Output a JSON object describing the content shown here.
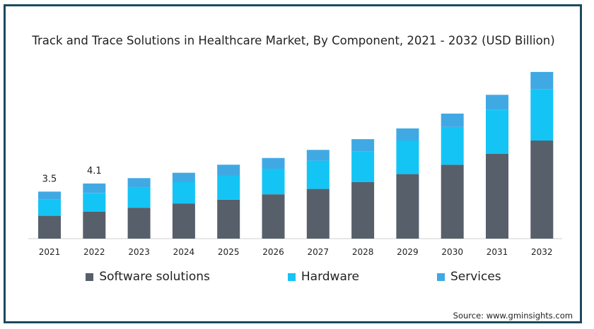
{
  "chart_data": {
    "type": "bar",
    "stacked": true,
    "title": "Track and Trace Solutions in Healthcare Market, By Component, 2021 - 2032 (USD Billion)",
    "categories": [
      "2021",
      "2022",
      "2023",
      "2024",
      "2025",
      "2026",
      "2027",
      "2028",
      "2029",
      "2030",
      "2031",
      "2032"
    ],
    "series": [
      {
        "name": "Software solutions",
        "color": "#575f6b",
        "values": [
          1.7,
          2.0,
          2.3,
          2.6,
          2.9,
          3.3,
          3.7,
          4.2,
          4.8,
          5.5,
          6.3,
          7.3
        ]
      },
      {
        "name": "Hardware",
        "color": "#14c4f5",
        "values": [
          1.2,
          1.4,
          1.5,
          1.6,
          1.8,
          1.9,
          2.1,
          2.3,
          2.5,
          2.8,
          3.3,
          3.8
        ]
      },
      {
        "name": "Services",
        "color": "#40a9e3",
        "values": [
          0.6,
          0.7,
          0.7,
          0.7,
          0.8,
          0.8,
          0.8,
          0.9,
          0.9,
          1.0,
          1.1,
          1.3
        ]
      }
    ],
    "data_labels": {
      "2021": "3.5",
      "2022": "4.1"
    },
    "ylim": [
      0,
      12.5
    ],
    "grid": false,
    "legend_position": "bottom"
  },
  "source": "Source: www.gminsights.com"
}
